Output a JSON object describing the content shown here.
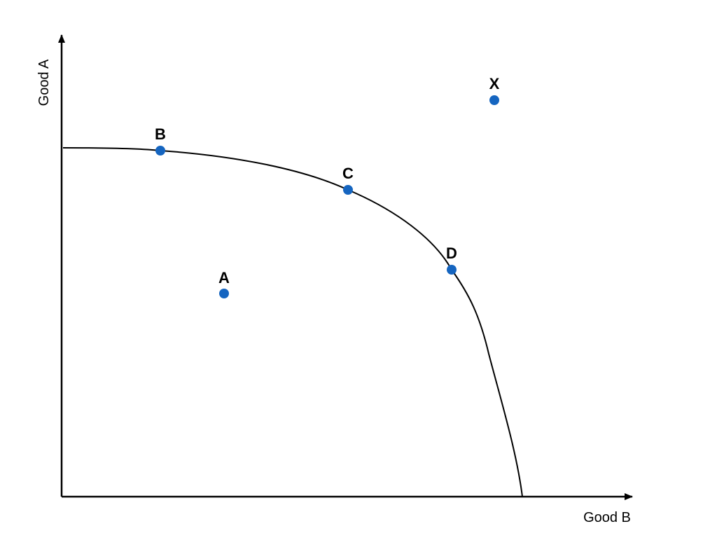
{
  "diagram": {
    "x_axis_label": "Good B",
    "y_axis_label": "Good A",
    "point_color": "#1565c0",
    "line_color": "#000000",
    "points": [
      {
        "name": "A",
        "position": "inside the frontier"
      },
      {
        "name": "B",
        "position": "on the frontier"
      },
      {
        "name": "C",
        "position": "on the frontier"
      },
      {
        "name": "D",
        "position": "on the frontier"
      },
      {
        "name": "X",
        "position": "outside the frontier"
      }
    ]
  }
}
